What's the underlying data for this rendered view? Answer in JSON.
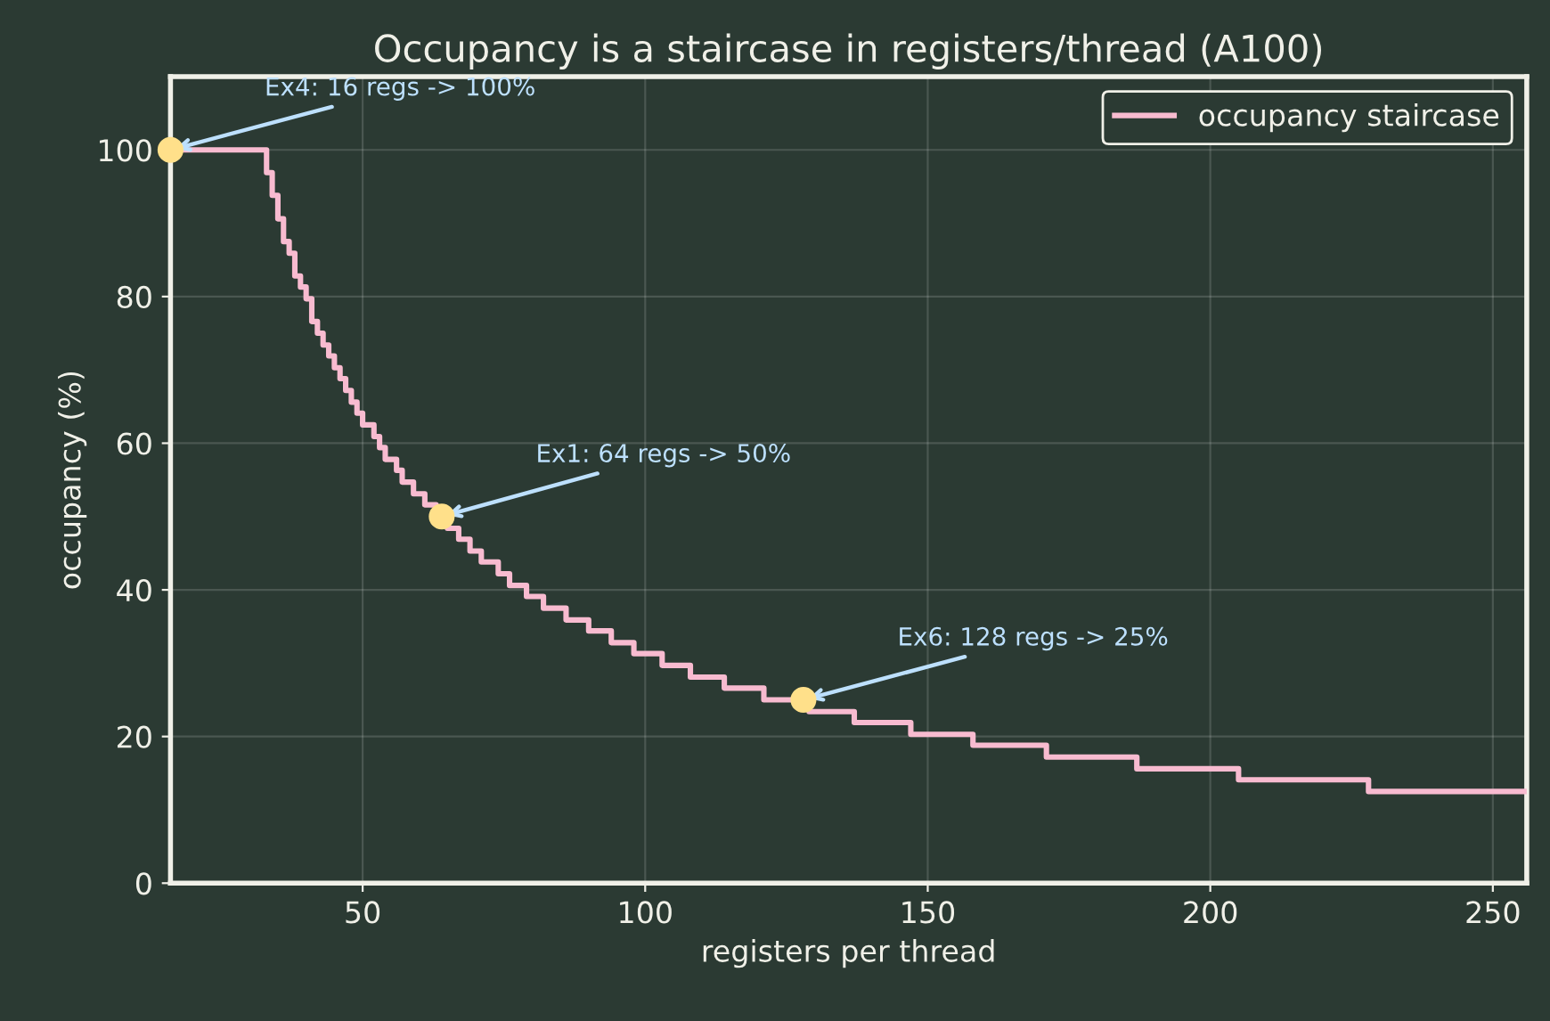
{
  "chart_data": {
    "type": "step",
    "title": "Occupancy is a staircase in registers/thread (A100)",
    "xlabel": "registers per thread",
    "ylabel": "occupancy (%)",
    "series": [
      {
        "name": "occupancy staircase",
        "color": "#f8bbd0",
        "x": [
          16,
          33,
          34,
          35,
          36,
          37,
          38,
          39,
          40,
          41,
          42,
          43,
          44,
          45,
          46,
          47,
          48,
          49,
          50,
          52,
          53,
          54,
          56,
          57,
          59,
          61,
          63,
          65,
          67,
          69,
          71,
          74,
          76,
          79,
          82,
          86,
          90,
          94,
          98,
          103,
          108,
          114,
          121,
          129,
          137,
          147,
          158,
          171,
          187,
          205,
          228,
          256
        ],
        "values": [
          100,
          96.9,
          93.8,
          90.6,
          87.5,
          85.9,
          82.8,
          81.3,
          79.7,
          76.6,
          75,
          73.4,
          71.9,
          70.3,
          68.8,
          67.2,
          65.6,
          64.1,
          62.5,
          60.9,
          59.4,
          57.8,
          56.3,
          54.7,
          53.1,
          51.6,
          50,
          48.4,
          46.9,
          45.3,
          43.8,
          42.2,
          40.6,
          39.1,
          37.5,
          35.9,
          34.4,
          32.8,
          31.3,
          29.7,
          28.1,
          26.6,
          25,
          23.4,
          21.9,
          20.3,
          18.8,
          17.2,
          15.6,
          14.1,
          12.5,
          12.5
        ]
      },
      {
        "type": "scatter",
        "color": "#ffe08a",
        "x": [
          16,
          64,
          128
        ],
        "values": [
          100,
          50,
          25
        ]
      }
    ],
    "annotations": [
      {
        "text": "Ex4: 16 regs -> 100%",
        "x": 16,
        "y": 100
      },
      {
        "text": "Ex1: 64 regs -> 50%",
        "x": 64,
        "y": 50
      },
      {
        "text": "Ex6: 128 regs -> 25%",
        "x": 128,
        "y": 25
      }
    ],
    "xlim": [
      16,
      256
    ],
    "ylim": [
      0,
      110
    ],
    "xticks": [
      50,
      100,
      150,
      200,
      250
    ],
    "yticks": [
      0,
      20,
      40,
      60,
      80,
      100
    ],
    "grid": true,
    "legend": "top right"
  }
}
